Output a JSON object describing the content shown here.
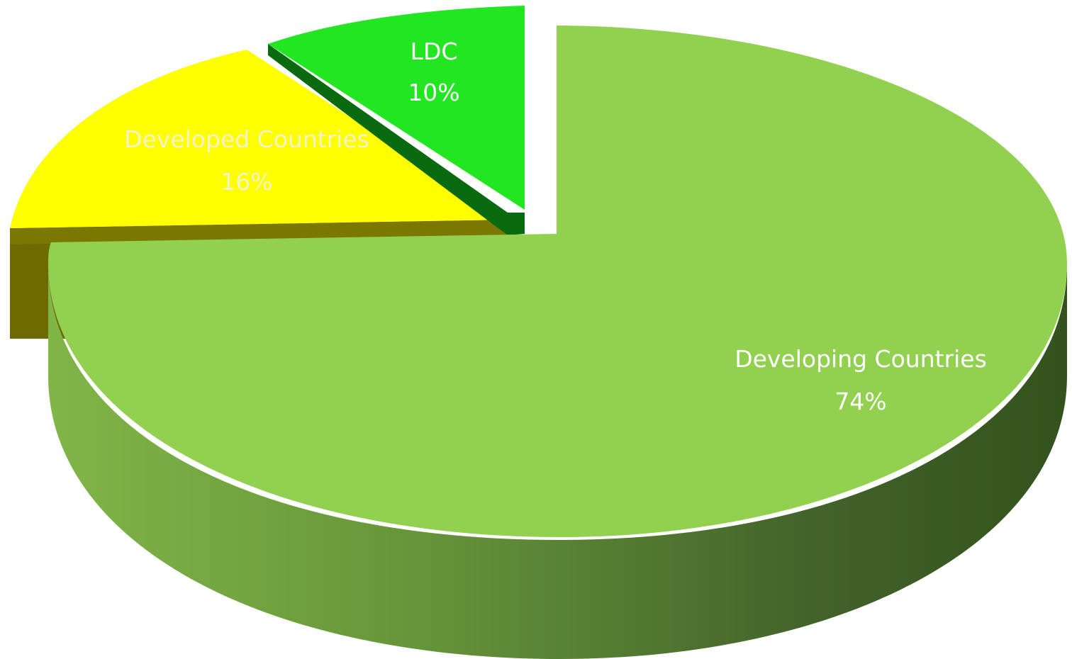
{
  "chart_data": {
    "type": "pie",
    "style": "3d-exploded",
    "slices": [
      {
        "name": "Developing Countries",
        "value": 74,
        "label": "Developing Countries",
        "pct_label": "74%",
        "color": "#92d050",
        "side_color": "#6b9a36",
        "side_dark": "#3a5a1e"
      },
      {
        "name": "Developed Countries",
        "value": 16,
        "label": "Developed Countries",
        "pct_label": "16%",
        "color": "#ffff00",
        "side_color": "#7a7800",
        "side_dark": "#6d6a00"
      },
      {
        "name": "LDC",
        "value": 10,
        "label": "LDC",
        "pct_label": "10%",
        "color": "#22e622",
        "side_color": "#0b7a12",
        "side_dark": "#0a6a10"
      }
    ]
  }
}
